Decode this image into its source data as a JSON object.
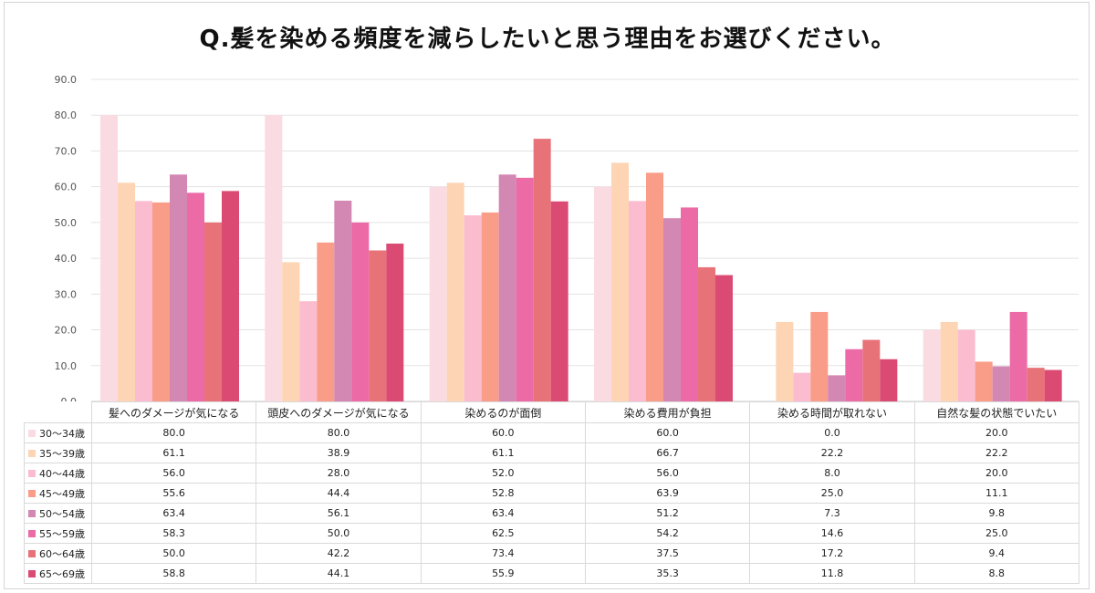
{
  "chart_data": {
    "type": "bar",
    "title": "Q.髪を染める頻度を減らしたいと思う理由をお選びください。",
    "categories": [
      "髪へのダメージが気になる",
      "頭皮へのダメージが気になる",
      "染めるのが面倒",
      "染める費用が負担",
      "染める時間が取れない",
      "自然な髪の状態でいたい"
    ],
    "ylim": [
      0,
      90
    ],
    "yticks": [
      "0.0",
      "10.0",
      "20.0",
      "30.0",
      "40.0",
      "50.0",
      "60.0",
      "70.0",
      "80.0",
      "90.0"
    ],
    "grid": true,
    "legend": "data-table",
    "series": [
      {
        "name": "30～34歳",
        "color": "#fadbe2",
        "values": [
          80.0,
          80.0,
          60.0,
          60.0,
          0.0,
          20.0
        ]
      },
      {
        "name": "35～39歳",
        "color": "#fdd5b4",
        "values": [
          61.1,
          38.9,
          61.1,
          66.7,
          22.2,
          22.2
        ]
      },
      {
        "name": "40～44歳",
        "color": "#fbbcd0",
        "values": [
          56.0,
          28.0,
          52.0,
          56.0,
          8.0,
          20.0
        ]
      },
      {
        "name": "45～49歳",
        "color": "#f99c88",
        "values": [
          55.6,
          44.4,
          52.8,
          63.9,
          25.0,
          11.1
        ]
      },
      {
        "name": "50～54歳",
        "color": "#d387b3",
        "values": [
          63.4,
          56.1,
          63.4,
          51.2,
          7.3,
          9.8
        ]
      },
      {
        "name": "55～59歳",
        "color": "#ec6aa6",
        "values": [
          58.3,
          50.0,
          62.5,
          54.2,
          14.6,
          25.0
        ]
      },
      {
        "name": "60～64歳",
        "color": "#e77379",
        "values": [
          50.0,
          42.2,
          73.4,
          37.5,
          17.2,
          9.4
        ]
      },
      {
        "name": "65～69歳",
        "color": "#da4a73",
        "values": [
          58.8,
          44.1,
          55.9,
          35.3,
          11.8,
          8.8
        ]
      }
    ]
  }
}
